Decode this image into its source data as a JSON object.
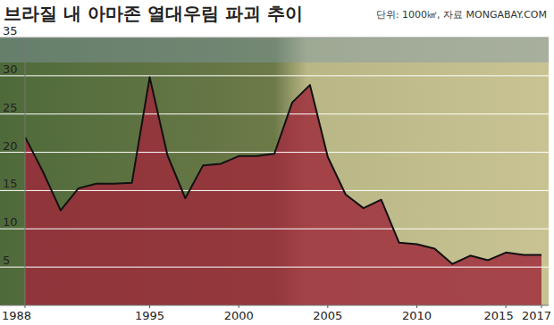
{
  "chart_data": {
    "type": "area",
    "title": "브라질 내 아마존 열대우림 파괴 추이",
    "subtitle": "단위: 1000㎢, 자료 MONGABAY.COM",
    "x": [
      1988,
      1989,
      1990,
      1991,
      1992,
      1993,
      1994,
      1995,
      1996,
      1997,
      1998,
      1999,
      2000,
      2001,
      2002,
      2003,
      2004,
      2005,
      2006,
      2007,
      2008,
      2009,
      2010,
      2011,
      2012,
      2013,
      2014,
      2015,
      2016,
      2017
    ],
    "values": [
      22,
      17.5,
      12.4,
      15.3,
      15.9,
      15.9,
      16,
      29.8,
      19.6,
      14,
      18.3,
      18.5,
      19.5,
      19.5,
      19.8,
      26.5,
      28.8,
      19.4,
      14.5,
      12.7,
      13.8,
      8.2,
      8,
      7.4,
      5.4,
      6.5,
      5.9,
      6.9,
      6.6,
      6.6
    ],
    "color": "#9e2a3a",
    "xlim": [
      1988,
      2017
    ],
    "xticks": [
      1988,
      1995,
      2000,
      2005,
      2010,
      2015,
      2017
    ],
    "ylim": [
      0,
      35
    ],
    "yticks": [
      5,
      10,
      15,
      20,
      25,
      30,
      35
    ],
    "grid": true
  }
}
